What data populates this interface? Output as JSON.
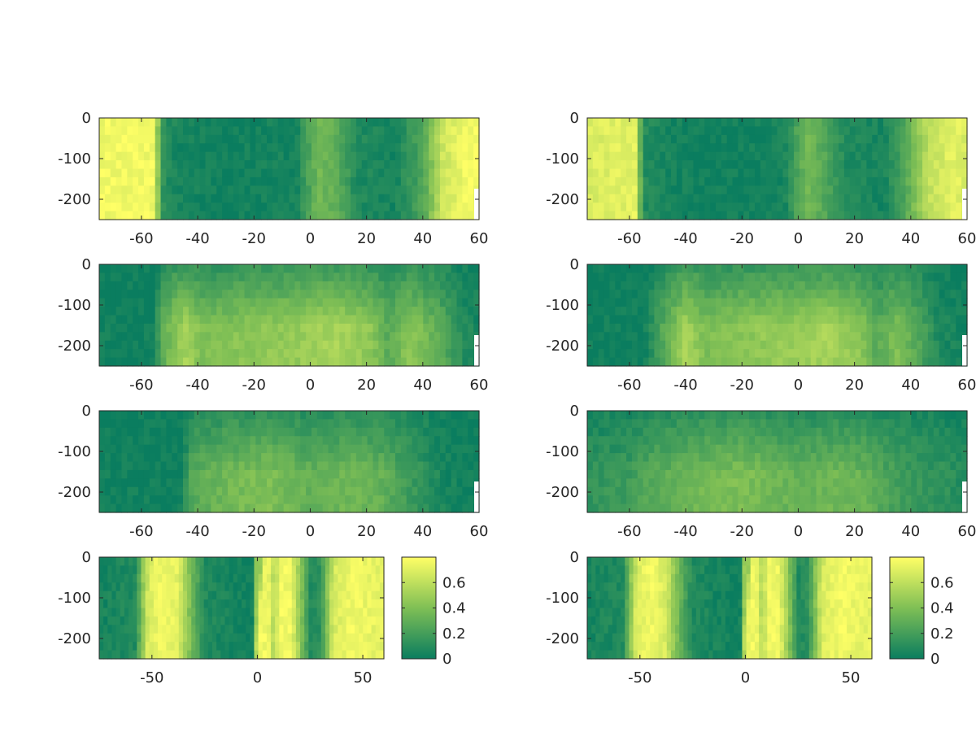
{
  "colors": {
    "low": "#0a7d5f",
    "mid": "#7fbf55",
    "high": "#ffff66",
    "axis": "#262626",
    "background": "#ffffff"
  },
  "chart_data": [
    {
      "type": "heatmap",
      "panel": "row1-left",
      "xlim": [
        -75,
        60
      ],
      "ylim": [
        -250,
        0
      ],
      "xticks": [
        "-60",
        "-40",
        "-20",
        "0",
        "20",
        "40",
        "60"
      ],
      "yticks": [
        "0",
        "-100",
        "-200"
      ],
      "profile": [
        [
          -75,
          0.95
        ],
        [
          -56,
          0.95
        ],
        [
          -52,
          0.12
        ],
        [
          -46,
          0.05
        ],
        [
          -30,
          0.02
        ],
        [
          -5,
          0.05
        ],
        [
          -1,
          0.25
        ],
        [
          3,
          0.45
        ],
        [
          10,
          0.35
        ],
        [
          16,
          0.1
        ],
        [
          30,
          0.05
        ],
        [
          40,
          0.3
        ],
        [
          47,
          0.8
        ],
        [
          55,
          0.95
        ],
        [
          60,
          0.95
        ]
      ],
      "depth_mod": "uniform"
    },
    {
      "type": "heatmap",
      "panel": "row1-right",
      "xlim": [
        -75,
        60
      ],
      "ylim": [
        -250,
        0
      ],
      "xticks": [
        "-60",
        "-40",
        "-20",
        "0",
        "20",
        "40",
        "60"
      ],
      "yticks": [
        "0",
        "-100",
        "-200"
      ],
      "profile": [
        [
          -75,
          0.85
        ],
        [
          -58,
          0.9
        ],
        [
          -55,
          0.12
        ],
        [
          -46,
          0.05
        ],
        [
          -30,
          0.02
        ],
        [
          -5,
          0.05
        ],
        [
          -1,
          0.25
        ],
        [
          3,
          0.45
        ],
        [
          10,
          0.3
        ],
        [
          17,
          0.1
        ],
        [
          30,
          0.05
        ],
        [
          38,
          0.3
        ],
        [
          46,
          0.75
        ],
        [
          55,
          0.9
        ],
        [
          60,
          0.85
        ]
      ],
      "depth_mod": "uniform"
    },
    {
      "type": "heatmap",
      "panel": "row2-left",
      "xlim": [
        -75,
        60
      ],
      "ylim": [
        -250,
        0
      ],
      "xticks": [
        "-60",
        "-40",
        "-20",
        "0",
        "20",
        "40",
        "60"
      ],
      "yticks": [
        "0",
        "-100",
        "-200"
      ],
      "profile": [
        [
          -75,
          0.02
        ],
        [
          -56,
          0.02
        ],
        [
          -52,
          0.35
        ],
        [
          -45,
          0.6
        ],
        [
          -38,
          0.45
        ],
        [
          -20,
          0.5
        ],
        [
          0,
          0.55
        ],
        [
          10,
          0.6
        ],
        [
          22,
          0.5
        ],
        [
          28,
          0.3
        ],
        [
          35,
          0.5
        ],
        [
          45,
          0.35
        ],
        [
          55,
          0.1
        ],
        [
          60,
          0.05
        ]
      ],
      "depth_mod": "surface_low"
    },
    {
      "type": "heatmap",
      "panel": "row2-right",
      "xlim": [
        -75,
        60
      ],
      "ylim": [
        -250,
        0
      ],
      "xticks": [
        "-60",
        "-40",
        "-20",
        "0",
        "20",
        "40",
        "60"
      ],
      "yticks": [
        "0",
        "-100",
        "-200"
      ],
      "profile": [
        [
          -75,
          0.02
        ],
        [
          -55,
          0.02
        ],
        [
          -48,
          0.3
        ],
        [
          -40,
          0.6
        ],
        [
          -33,
          0.45
        ],
        [
          -20,
          0.5
        ],
        [
          0,
          0.55
        ],
        [
          10,
          0.6
        ],
        [
          22,
          0.5
        ],
        [
          28,
          0.3
        ],
        [
          35,
          0.45
        ],
        [
          42,
          0.3
        ],
        [
          50,
          0.08
        ],
        [
          60,
          0.02
        ]
      ],
      "depth_mod": "surface_low"
    },
    {
      "type": "heatmap",
      "panel": "row3-left",
      "xlim": [
        -75,
        60
      ],
      "ylim": [
        -250,
        0
      ],
      "xticks": [
        "-60",
        "-40",
        "-20",
        "0",
        "20",
        "40",
        "60"
      ],
      "yticks": [
        "0",
        "-100",
        "-200"
      ],
      "profile": [
        [
          -75,
          0.02
        ],
        [
          -46,
          0.02
        ],
        [
          -42,
          0.3
        ],
        [
          -30,
          0.4
        ],
        [
          -15,
          0.45
        ],
        [
          0,
          0.35
        ],
        [
          15,
          0.4
        ],
        [
          25,
          0.35
        ],
        [
          32,
          0.25
        ],
        [
          40,
          0.15
        ],
        [
          48,
          0.05
        ],
        [
          60,
          0.02
        ]
      ],
      "depth_mod": "surface_low"
    },
    {
      "type": "heatmap",
      "panel": "row3-right",
      "xlim": [
        -75,
        60
      ],
      "ylim": [
        -250,
        0
      ],
      "xticks": [
        "-60",
        "-40",
        "-20",
        "0",
        "20",
        "40",
        "60"
      ],
      "yticks": [
        "0",
        "-100",
        "-200"
      ],
      "profile": [
        [
          -75,
          0.15
        ],
        [
          -60,
          0.2
        ],
        [
          -52,
          0.3
        ],
        [
          -45,
          0.35
        ],
        [
          -35,
          0.4
        ],
        [
          -20,
          0.45
        ],
        [
          0,
          0.35
        ],
        [
          15,
          0.4
        ],
        [
          25,
          0.35
        ],
        [
          32,
          0.25
        ],
        [
          40,
          0.2
        ],
        [
          50,
          0.15
        ],
        [
          60,
          0.1
        ]
      ],
      "depth_mod": "surface_low"
    },
    {
      "type": "heatmap",
      "panel": "row4-left",
      "xlim": [
        -75,
        60
      ],
      "ylim": [
        -250,
        0
      ],
      "xticks": [
        "-50",
        "0",
        "50"
      ],
      "yticks": [
        "0",
        "-100",
        "-200"
      ],
      "profile": [
        [
          -75,
          0.05
        ],
        [
          -58,
          0.1
        ],
        [
          -52,
          0.85
        ],
        [
          -45,
          0.95
        ],
        [
          -38,
          0.9
        ],
        [
          -32,
          0.5
        ],
        [
          -25,
          0.1
        ],
        [
          -5,
          0.02
        ],
        [
          -2,
          0.05
        ],
        [
          0,
          0.95
        ],
        [
          5,
          0.95
        ],
        [
          8,
          0.7
        ],
        [
          11,
          0.95
        ],
        [
          16,
          0.95
        ],
        [
          20,
          0.6
        ],
        [
          25,
          0.1
        ],
        [
          30,
          0.15
        ],
        [
          36,
          0.85
        ],
        [
          45,
          0.95
        ],
        [
          58,
          0.9
        ]
      ],
      "depth_mod": "wedge"
    },
    {
      "type": "heatmap",
      "panel": "row4-right",
      "xlim": [
        -75,
        60
      ],
      "ylim": [
        -250,
        0
      ],
      "xticks": [
        "-50",
        "0",
        "50"
      ],
      "yticks": [
        "0",
        "-100",
        "-200"
      ],
      "profile": [
        [
          -75,
          0.05
        ],
        [
          -58,
          0.1
        ],
        [
          -52,
          0.85
        ],
        [
          -45,
          0.95
        ],
        [
          -38,
          0.85
        ],
        [
          -32,
          0.45
        ],
        [
          -25,
          0.1
        ],
        [
          -5,
          0.02
        ],
        [
          -2,
          0.05
        ],
        [
          0,
          0.95
        ],
        [
          5,
          0.95
        ],
        [
          8,
          0.7
        ],
        [
          11,
          0.95
        ],
        [
          16,
          0.95
        ],
        [
          20,
          0.6
        ],
        [
          25,
          0.1
        ],
        [
          30,
          0.15
        ],
        [
          36,
          0.85
        ],
        [
          45,
          0.95
        ],
        [
          58,
          0.9
        ]
      ],
      "depth_mod": "wedge"
    }
  ],
  "colorbar": {
    "range": [
      0,
      0.8
    ],
    "ticks": [
      "0",
      "0.2",
      "0.4",
      "0.6"
    ]
  }
}
